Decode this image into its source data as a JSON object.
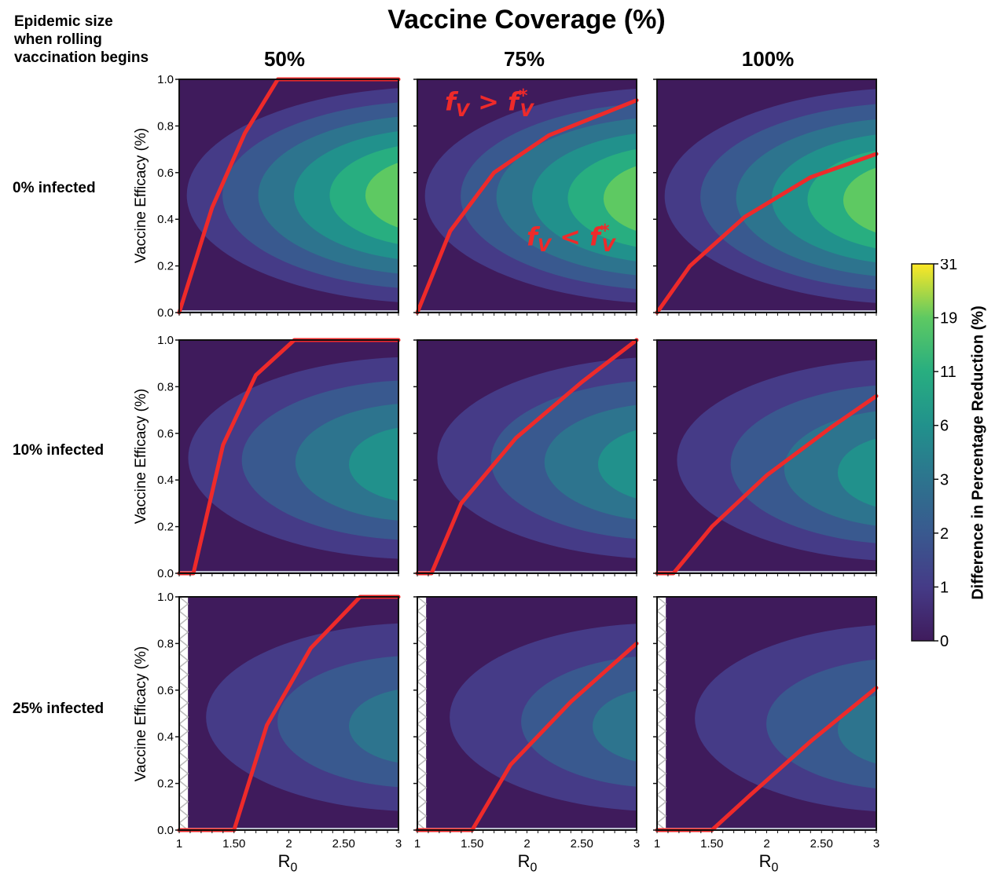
{
  "chart_data": {
    "type": "heatmap",
    "title": "Vaccine Coverage (%)",
    "corner_label": [
      "Epidemic size",
      "when rolling",
      "vaccination begins"
    ],
    "columns": [
      "50%",
      "75%",
      "100%"
    ],
    "rows": [
      "0% infected",
      "10% infected",
      "25% infected"
    ],
    "ylabel": "Vaccine Efficacy (%)",
    "xlabel": "R0",
    "xlim": [
      1,
      3
    ],
    "ylim": [
      0,
      1
    ],
    "x_ticks": [
      "1",
      "1.50",
      "2",
      "2.50",
      "3"
    ],
    "y_ticks": [
      "0.0",
      "0.2",
      "0.4",
      "0.6",
      "0.8",
      "1.0"
    ],
    "colorbar": {
      "label": "Difference in Percentage Reduction (%)",
      "ticks": [
        "0",
        "1",
        "2",
        "3",
        "6",
        "11",
        "19",
        "31"
      ],
      "colors": [
        "#3f1b5c",
        "#453b87",
        "#39598f",
        "#2d748e",
        "#21918c",
        "#28ae80",
        "#5ec962",
        "#fde725"
      ]
    },
    "annotations": {
      "above": "> ",
      "below": "< ",
      "symbol": "f",
      "subscript": "V",
      "star": "*"
    },
    "threshold_color": "#ee2a2a",
    "panels": [
      {
        "row": 0,
        "col": 0,
        "peak_level": 6,
        "peak_x": 2.9,
        "peak_y": 0.5,
        "threshold_curve": [
          [
            1.0,
            0.0
          ],
          [
            1.3,
            0.45
          ],
          [
            1.6,
            0.77
          ],
          [
            1.9,
            1.0
          ],
          [
            3.0,
            1.0
          ]
        ],
        "blocked_region": false
      },
      {
        "row": 0,
        "col": 1,
        "peak_level": 6,
        "peak_x": 2.9,
        "peak_y": 0.48,
        "threshold_curve": [
          [
            1.0,
            0.0
          ],
          [
            1.3,
            0.35
          ],
          [
            1.7,
            0.6
          ],
          [
            2.2,
            0.76
          ],
          [
            3.0,
            0.91
          ]
        ],
        "blocked_region": false
      },
      {
        "row": 0,
        "col": 2,
        "peak_level": 6,
        "peak_x": 2.9,
        "peak_y": 0.47,
        "threshold_curve": [
          [
            1.0,
            0.0
          ],
          [
            1.3,
            0.2
          ],
          [
            1.8,
            0.41
          ],
          [
            2.4,
            0.58
          ],
          [
            3.0,
            0.68
          ]
        ],
        "blocked_region": false
      },
      {
        "row": 1,
        "col": 0,
        "peak_level": 4,
        "peak_x": 2.75,
        "peak_y": 0.45,
        "threshold_curve": [
          [
            1.0,
            0.0
          ],
          [
            1.13,
            0.0
          ],
          [
            1.4,
            0.55
          ],
          [
            1.7,
            0.85
          ],
          [
            2.05,
            1.0
          ],
          [
            3.0,
            1.0
          ]
        ],
        "blocked_region": false
      },
      {
        "row": 1,
        "col": 1,
        "peak_level": 4,
        "peak_x": 2.85,
        "peak_y": 0.45,
        "threshold_curve": [
          [
            1.0,
            0.0
          ],
          [
            1.13,
            0.0
          ],
          [
            1.4,
            0.3
          ],
          [
            1.9,
            0.58
          ],
          [
            2.5,
            0.82
          ],
          [
            3.0,
            1.0
          ]
        ],
        "blocked_region": false
      },
      {
        "row": 1,
        "col": 2,
        "peak_level": 4,
        "peak_x": 2.85,
        "peak_y": 0.4,
        "threshold_curve": [
          [
            1.0,
            0.0
          ],
          [
            1.15,
            0.0
          ],
          [
            1.5,
            0.2
          ],
          [
            2.0,
            0.42
          ],
          [
            2.6,
            0.63
          ],
          [
            3.0,
            0.76
          ]
        ],
        "blocked_region": false
      },
      {
        "row": 2,
        "col": 0,
        "peak_level": 3,
        "peak_x": 2.75,
        "peak_y": 0.42,
        "threshold_curve": [
          [
            1.0,
            0.0
          ],
          [
            1.5,
            0.0
          ],
          [
            1.8,
            0.45
          ],
          [
            2.2,
            0.78
          ],
          [
            2.65,
            1.0
          ],
          [
            3.0,
            1.0
          ]
        ],
        "blocked_region": true
      },
      {
        "row": 2,
        "col": 1,
        "peak_level": 3,
        "peak_x": 2.8,
        "peak_y": 0.42,
        "threshold_curve": [
          [
            1.0,
            0.0
          ],
          [
            1.5,
            0.0
          ],
          [
            1.85,
            0.28
          ],
          [
            2.4,
            0.55
          ],
          [
            3.0,
            0.8
          ]
        ],
        "blocked_region": true
      },
      {
        "row": 2,
        "col": 2,
        "peak_level": 3,
        "peak_x": 2.85,
        "peak_y": 0.4,
        "threshold_curve": [
          [
            1.0,
            0.0
          ],
          [
            1.5,
            0.0
          ],
          [
            1.85,
            0.15
          ],
          [
            2.4,
            0.38
          ],
          [
            3.0,
            0.61
          ]
        ],
        "blocked_region": true
      }
    ]
  }
}
